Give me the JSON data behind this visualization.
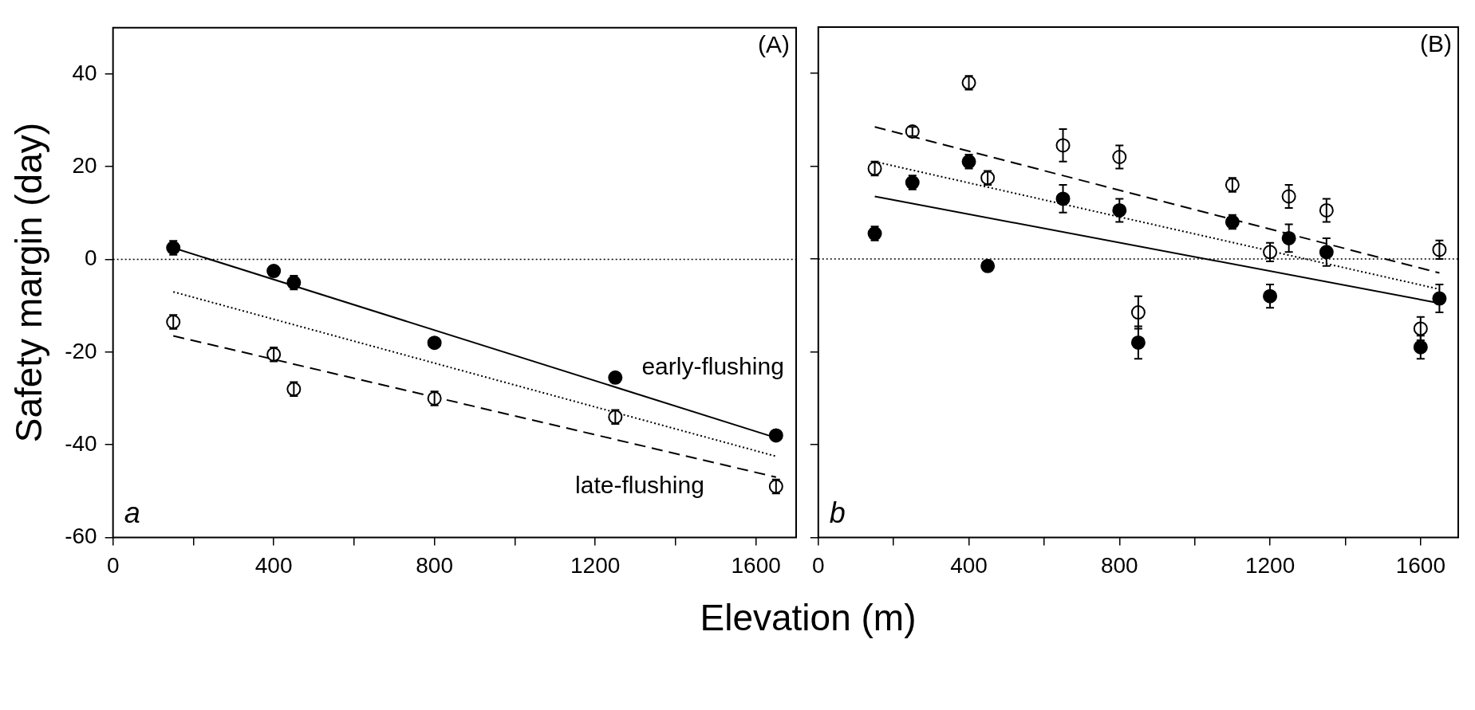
{
  "chart_data": [
    {
      "type": "scatter",
      "ylabel": "Safety margin (day)",
      "xlabel": "Elevation (m)",
      "xlim": [
        0,
        1700
      ],
      "ylim": [
        -60,
        50
      ],
      "xticks": [
        0,
        {
          "value": 200,
          "label": null
        },
        400,
        {
          "value": 600,
          "label": null
        },
        800,
        {
          "value": 1000,
          "label": null
        },
        1200,
        {
          "value": 1400,
          "label": null
        },
        1600
      ],
      "yticks": [
        -60,
        -40,
        -20,
        0,
        20,
        40
      ],
      "grid": false,
      "legend": false,
      "ref_lines": [
        {
          "axis": "y",
          "value": 0,
          "line_style": "dotted",
          "color": "#000000"
        }
      ],
      "annotations": [
        "(A)",
        "a"
      ],
      "series": [
        {
          "type": "scatter",
          "name": "early-flushing",
          "marker": "circle",
          "color": "#000000",
          "x": [
            150,
            400,
            450,
            800,
            1250,
            1650
          ],
          "values": [
            2.5,
            -2.5,
            -5,
            -18,
            -25.5,
            -38
          ],
          "errors": [
            1.5,
            null,
            1.5,
            null,
            null,
            null
          ]
        },
        {
          "type": "scatter",
          "name": "late-flushing",
          "marker": "circle",
          "color": "#ffffff",
          "x": [
            150,
            400,
            450,
            800,
            1250,
            1650
          ],
          "values": [
            -13.5,
            -20.5,
            -28,
            -30,
            -34,
            -49
          ],
          "errors": [
            1.5,
            1.5,
            1.5,
            1.5,
            1.5,
            1.5
          ]
        },
        {
          "type": "line",
          "color": "#000000",
          "line_style": "solid",
          "x": [
            150,
            1650
          ],
          "values": [
            2.5,
            -38.5
          ]
        },
        {
          "type": "line",
          "color": "#000000",
          "line_style": "dotted",
          "x": [
            150,
            1650
          ],
          "values": [
            -7,
            -42.5
          ]
        },
        {
          "type": "line",
          "color": "#000000",
          "line_style": "dashed",
          "x": [
            150,
            1650
          ],
          "values": [
            -16.5,
            -47
          ]
        }
      ]
    },
    {
      "type": "scatter",
      "xlim": [
        0,
        1700
      ],
      "ylim": [
        -60,
        50
      ],
      "xticks": [
        0,
        {
          "value": 200,
          "label": null
        },
        400,
        {
          "value": 600,
          "label": null
        },
        800,
        {
          "value": 1000,
          "label": null
        },
        1200,
        {
          "value": 1400,
          "label": null
        },
        1600
      ],
      "yticks": [
        -60,
        -40,
        -20,
        0,
        20,
        40
      ],
      "tick_labels": "x",
      "grid": false,
      "legend": false,
      "ref_lines": [
        {
          "axis": "y",
          "value": 0,
          "line_style": "dotted",
          "color": "#000000"
        }
      ],
      "annotations": [
        "(B)",
        "b"
      ],
      "series": [
        {
          "type": "scatter",
          "marker": "circle",
          "color": "#000000",
          "x": [
            150,
            250,
            400,
            450,
            650,
            800,
            850,
            1100,
            1200,
            1250,
            1350,
            1600,
            1650
          ],
          "values": [
            5.5,
            16.5,
            21,
            -1.5,
            13,
            10.5,
            -18,
            8,
            -8,
            4.5,
            1.5,
            -19,
            -8.5
          ],
          "errors": [
            1.5,
            1.5,
            1.5,
            null,
            3,
            2.5,
            3.5,
            1.5,
            2.5,
            3,
            3,
            2.5,
            3
          ]
        },
        {
          "type": "scatter",
          "marker": "circle",
          "color": "#ffffff",
          "x": [
            150,
            250,
            400,
            450,
            650,
            800,
            850,
            1100,
            1200,
            1250,
            1350,
            1600,
            1650
          ],
          "values": [
            19.5,
            27.5,
            38,
            17.5,
            24.5,
            22,
            -11.5,
            16,
            1.5,
            13.5,
            10.5,
            -15,
            2
          ],
          "errors": [
            1.5,
            1,
            1.5,
            1.5,
            3.5,
            2.5,
            3.5,
            1.5,
            2,
            2.5,
            2.5,
            2.5,
            2
          ]
        },
        {
          "type": "line",
          "color": "#000000",
          "line_style": "dashed",
          "x": [
            150,
            1650
          ],
          "values": [
            28.5,
            -3
          ]
        },
        {
          "type": "line",
          "color": "#000000",
          "line_style": "dotted",
          "x": [
            150,
            1650
          ],
          "values": [
            21,
            -6.5
          ]
        },
        {
          "type": "line",
          "color": "#000000",
          "line_style": "solid",
          "x": [
            150,
            1650
          ],
          "values": [
            13.5,
            -9.5
          ]
        }
      ]
    }
  ]
}
